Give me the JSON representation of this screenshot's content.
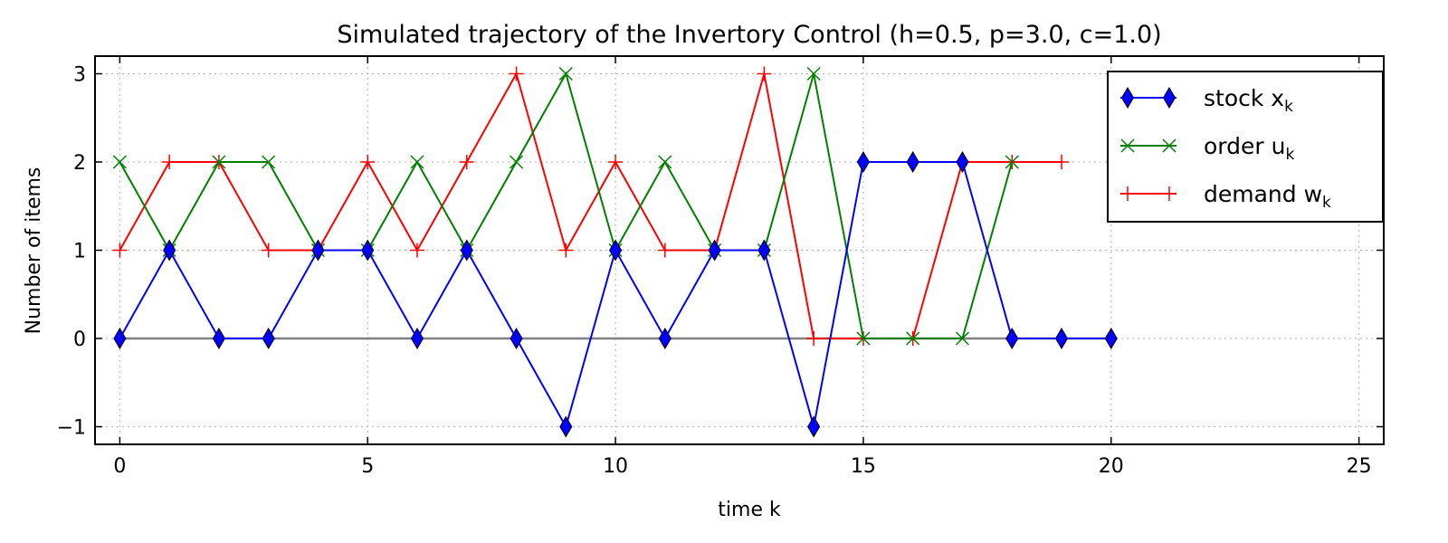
{
  "chart_data": {
    "type": "line",
    "title": "Simulated trajectory of the Invertory Control (h=0.5, p=3.0, c=1.0)",
    "xlabel": "time k",
    "ylabel": "Number of items",
    "xlim": [
      -0.5,
      25.5
    ],
    "ylim": [
      -1.2,
      3.2
    ],
    "xticks": [
      0,
      5,
      10,
      15,
      20,
      25
    ],
    "yticks": [
      -1,
      0,
      1,
      2,
      3
    ],
    "grid": true,
    "legend_position": "top-right",
    "series": [
      {
        "name": "stock x",
        "subscript": "k",
        "color": "#0000ff",
        "marker": "diamond",
        "x": [
          0,
          1,
          2,
          3,
          4,
          5,
          6,
          7,
          8,
          9,
          10,
          11,
          12,
          13,
          14,
          15,
          16,
          17,
          18,
          19,
          20
        ],
        "values": [
          0,
          1,
          0,
          0,
          1,
          1,
          0,
          1,
          0,
          -1,
          1,
          0,
          1,
          1,
          -1,
          2,
          2,
          2,
          0,
          0,
          0
        ]
      },
      {
        "name": "order u",
        "subscript": "k",
        "color": "#008000",
        "marker": "x",
        "x": [
          0,
          1,
          2,
          3,
          4,
          5,
          6,
          7,
          8,
          9,
          10,
          11,
          12,
          13,
          14,
          15,
          16,
          17,
          18
        ],
        "values": [
          2,
          1,
          2,
          2,
          1,
          1,
          2,
          1,
          2,
          3,
          1,
          2,
          1,
          1,
          3,
          0,
          0,
          0,
          2
        ]
      },
      {
        "name": "demand w",
        "subscript": "k",
        "color": "#ff0000",
        "marker": "plus",
        "x": [
          0,
          1,
          2,
          3,
          4,
          5,
          6,
          7,
          8,
          9,
          10,
          11,
          12,
          13,
          14,
          15,
          16,
          17,
          18,
          19
        ],
        "values": [
          1,
          2,
          2,
          1,
          1,
          2,
          1,
          2,
          3,
          1,
          2,
          1,
          1,
          3,
          0,
          0,
          0,
          2,
          2,
          2
        ]
      }
    ]
  }
}
